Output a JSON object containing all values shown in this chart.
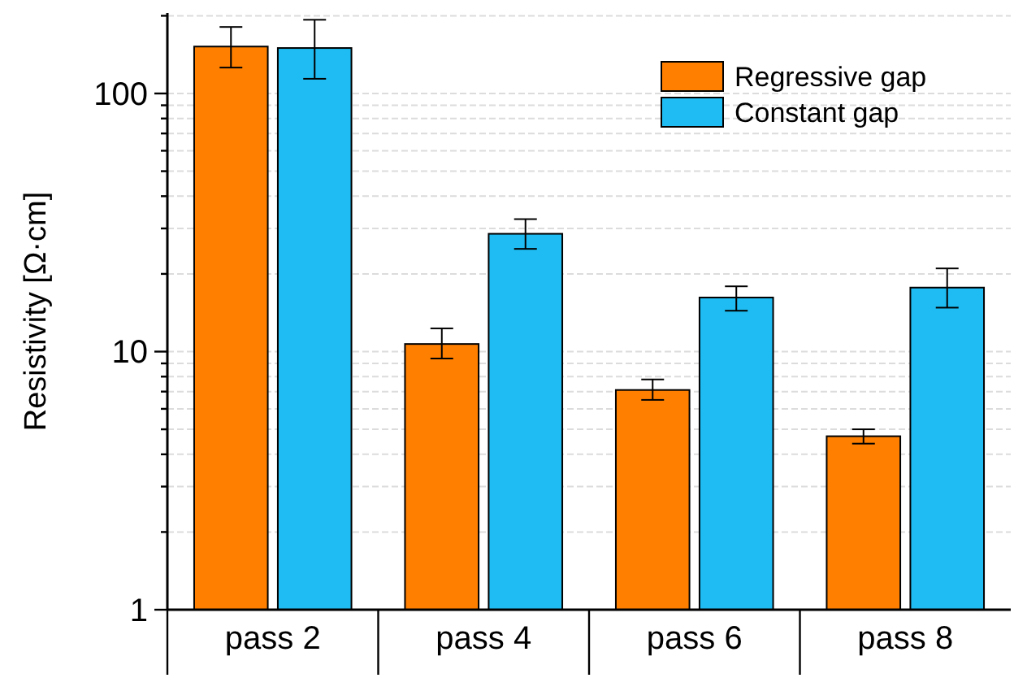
{
  "chart_data": {
    "type": "bar",
    "ylabel": "Resistivity [Ω·cm]",
    "log": true,
    "ylim": [
      1,
      205
    ],
    "yticks": [
      1,
      {
        "value": 2,
        "label": null
      },
      {
        "value": 3,
        "label": null
      },
      {
        "value": 4,
        "label": null
      },
      {
        "value": 5,
        "label": null
      },
      {
        "value": 6,
        "label": null
      },
      {
        "value": 7,
        "label": null
      },
      {
        "value": 8,
        "label": null
      },
      {
        "value": 9,
        "label": null
      },
      10,
      {
        "value": 20,
        "label": null
      },
      {
        "value": 30,
        "label": null
      },
      {
        "value": 40,
        "label": null
      },
      {
        "value": 50,
        "label": null
      },
      {
        "value": 60,
        "label": null
      },
      {
        "value": 70,
        "label": null
      },
      {
        "value": 80,
        "label": null
      },
      {
        "value": 90,
        "label": null
      },
      100,
      {
        "value": 200,
        "label": null
      }
    ],
    "grid": "y",
    "legend": "top right",
    "categories": [
      "pass 2",
      "pass 4",
      "pass 6",
      "pass 8"
    ],
    "series": [
      {
        "name": "Regressive gap",
        "color": "#ff8000",
        "values": [
          152,
          10.7,
          7.1,
          4.7
        ],
        "errors": [
          [
            126,
            181
          ],
          [
            9.4,
            12.3
          ],
          [
            6.5,
            7.8
          ],
          [
            4.4,
            5.0
          ]
        ]
      },
      {
        "name": "Constant gap",
        "color": "#1ebcf2",
        "values": [
          150,
          28.6,
          16.2,
          17.7
        ],
        "errors": [
          [
            114,
            193
          ],
          [
            25,
            32.6
          ],
          [
            14.4,
            17.9
          ],
          [
            14.8,
            21
          ]
        ]
      }
    ]
  }
}
